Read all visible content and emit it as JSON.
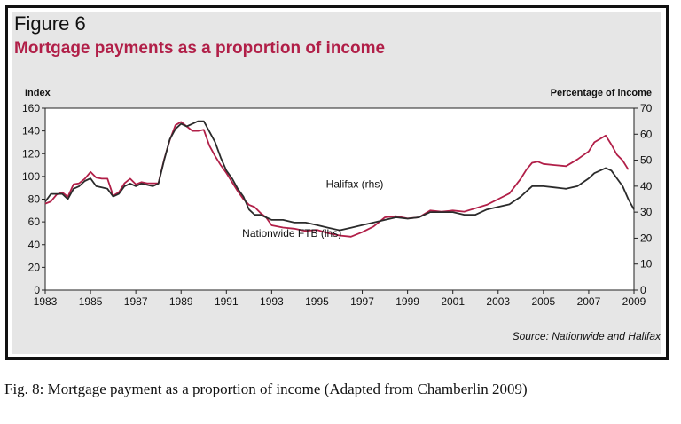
{
  "figure": {
    "label": "Figure 6",
    "title": "Mortgage payments as a proportion of income",
    "source": "Source: Nationwide and Halifax",
    "caption": "Fig. 8: Mortgage payment as a proportion of income (Adapted from Chamberlin 2009)"
  },
  "colors": {
    "nationwide": "#b11f48",
    "halifax": "#2b2b2b",
    "title": "#b11f48",
    "panel": "#e6e6e6"
  },
  "chart_data": {
    "type": "line",
    "title": "Mortgage payments as a proportion of income",
    "ylabel_left": "Index",
    "ylabel_right": "Percentage of income",
    "ylim_left": [
      0,
      160
    ],
    "ylim_right": [
      0,
      70
    ],
    "xlim": [
      1983,
      2009
    ],
    "x_ticks": [
      "1983",
      "1985",
      "1987",
      "1989",
      "1991",
      "1993",
      "1995",
      "1997",
      "1999",
      "2001",
      "2003",
      "2005",
      "2007",
      "2009"
    ],
    "y_ticks_left": [
      "0",
      "20",
      "40",
      "60",
      "80",
      "100",
      "120",
      "140",
      "160"
    ],
    "y_ticks_right": [
      "0",
      "10",
      "20",
      "30",
      "40",
      "50",
      "60",
      "70"
    ],
    "grid": false,
    "series": [
      {
        "name": "Nationwide FTB (lhs)",
        "axis": "left",
        "x": [
          1983,
          1983.25,
          1983.5,
          1983.75,
          1984,
          1984.25,
          1984.5,
          1984.75,
          1985,
          1985.25,
          1985.5,
          1985.75,
          1986,
          1986.25,
          1986.5,
          1986.75,
          1987,
          1987.25,
          1987.5,
          1987.75,
          1988,
          1988.25,
          1988.5,
          1988.75,
          1989,
          1989.25,
          1989.5,
          1989.75,
          1990,
          1990.25,
          1990.5,
          1990.75,
          1991,
          1991.25,
          1991.5,
          1991.75,
          1992,
          1992.25,
          1992.5,
          1992.75,
          1993,
          1993.5,
          1994,
          1994.5,
          1995,
          1995.5,
          1996,
          1996.5,
          1997,
          1997.5,
          1998,
          1998.5,
          1999,
          1999.5,
          2000,
          2000.5,
          2001,
          2001.5,
          2002,
          2002.5,
          2003,
          2003.5,
          2004,
          2004.25,
          2004.5,
          2004.75,
          2005,
          2005.5,
          2006,
          2006.5,
          2007,
          2007.25,
          2007.5,
          2007.75,
          2008,
          2008.25,
          2008.5,
          2008.75
        ],
        "values": [
          76,
          78,
          84,
          86,
          82,
          93,
          94,
          98,
          104,
          99,
          98,
          98,
          83,
          86,
          94,
          98,
          93,
          95,
          94,
          94,
          94,
          115,
          132,
          145,
          148,
          144,
          140,
          140,
          141,
          127,
          118,
          110,
          103,
          95,
          87,
          80,
          75,
          73,
          68,
          64,
          57,
          55,
          54,
          52,
          53,
          50,
          48,
          47,
          51,
          56,
          64,
          65,
          63,
          64,
          70,
          69,
          70,
          69,
          72,
          75,
          80,
          85,
          98,
          106,
          112,
          113,
          111,
          110,
          109,
          115,
          122,
          130,
          133,
          136,
          128,
          119,
          114,
          106
        ]
      },
      {
        "name": "Halifax (rhs)",
        "axis": "right",
        "x": [
          1983,
          1983.25,
          1983.5,
          1983.75,
          1984,
          1984.25,
          1984.5,
          1984.75,
          1985,
          1985.25,
          1985.5,
          1985.75,
          1986,
          1986.25,
          1986.5,
          1986.75,
          1987,
          1987.25,
          1987.5,
          1987.75,
          1988,
          1988.25,
          1988.5,
          1988.75,
          1989,
          1989.25,
          1989.5,
          1989.75,
          1990,
          1990.25,
          1990.5,
          1990.75,
          1991,
          1991.25,
          1991.5,
          1991.75,
          1992,
          1992.25,
          1992.5,
          1992.75,
          1993,
          1993.5,
          1994,
          1994.5,
          1995,
          1995.5,
          1996,
          1996.5,
          1997,
          1997.5,
          1998,
          1998.5,
          1999,
          1999.5,
          2000,
          2000.5,
          2001,
          2001.5,
          2002,
          2002.5,
          2003,
          2003.5,
          2004,
          2004.25,
          2004.5,
          2004.75,
          2005,
          2005.5,
          2006,
          2006.5,
          2007,
          2007.25,
          2007.5,
          2007.75,
          2008,
          2008.25,
          2008.5,
          2008.75,
          2009
        ],
        "values": [
          34,
          37,
          37,
          37,
          35,
          39,
          40,
          42,
          43,
          40,
          39.5,
          39,
          36,
          37,
          40,
          41,
          40,
          41,
          40.5,
          40,
          41,
          50,
          58,
          62,
          64,
          63,
          64,
          65,
          65,
          61,
          57,
          51,
          46,
          43,
          39,
          36,
          31,
          29,
          29,
          28,
          27,
          27,
          26,
          26,
          25,
          24,
          23,
          24,
          25,
          26,
          27,
          28,
          27.5,
          28,
          30,
          30,
          30,
          29,
          29,
          31,
          32,
          33,
          36,
          38,
          40,
          40,
          40,
          39.5,
          39,
          40,
          43,
          45,
          46,
          47,
          46,
          43,
          40,
          35,
          31
        ]
      }
    ],
    "annotations": [
      {
        "text": "Halifax (rhs)",
        "x": 1995.4,
        "y": 90,
        "axis": "left"
      },
      {
        "text": "Nationwide FTB (lhs)",
        "x": 1991.7,
        "y": 47,
        "axis": "left"
      }
    ]
  }
}
